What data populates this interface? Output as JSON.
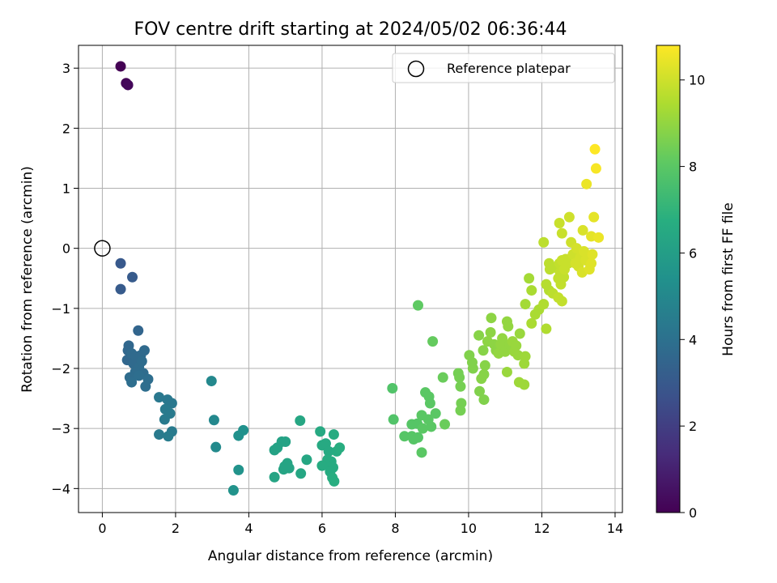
{
  "chart_data": {
    "type": "scatter",
    "title": "FOV centre drift starting at 2024/05/02 06:36:44",
    "xlabel": "Angular distance from reference (arcmin)",
    "ylabel": "Rotation from reference (arcmin)",
    "xlim": [
      -0.65,
      14.2
    ],
    "ylim": [
      -4.4,
      3.38
    ],
    "xticks": [
      0,
      2,
      4,
      6,
      8,
      10,
      12,
      14
    ],
    "yticks": [
      -4,
      -3,
      -2,
      -1,
      0,
      1,
      2,
      3
    ],
    "grid": true,
    "legend": {
      "placement": "top-right",
      "entries": [
        {
          "label": "Reference platepar",
          "marker": "open-circle"
        }
      ]
    },
    "reference_point": {
      "x": 0,
      "y": 0
    },
    "colorbar": {
      "label": "Hours from first FF file",
      "min": 0,
      "max": 10.8,
      "ticks": [
        0,
        2,
        4,
        6,
        8,
        10
      ],
      "colormap": "viridis"
    },
    "points": [
      {
        "x": 0.5,
        "y": 3.03,
        "c": 0.0
      },
      {
        "x": 0.65,
        "y": 2.75,
        "c": 0.1
      },
      {
        "x": 0.7,
        "y": 2.72,
        "c": 0.2
      },
      {
        "x": 0.5,
        "y": -0.25,
        "c": 3.0
      },
      {
        "x": 0.5,
        "y": -0.68,
        "c": 3.1
      },
      {
        "x": 0.82,
        "y": -0.48,
        "c": 3.1
      },
      {
        "x": 0.98,
        "y": -1.37,
        "c": 3.5
      },
      {
        "x": 0.72,
        "y": -1.62,
        "c": 3.6
      },
      {
        "x": 0.7,
        "y": -1.7,
        "c": 3.6
      },
      {
        "x": 0.68,
        "y": -1.86,
        "c": 3.6
      },
      {
        "x": 0.8,
        "y": -1.75,
        "c": 3.7
      },
      {
        "x": 0.92,
        "y": -1.8,
        "c": 3.7
      },
      {
        "x": 1.05,
        "y": -1.78,
        "c": 3.7
      },
      {
        "x": 1.15,
        "y": -1.7,
        "c": 3.7
      },
      {
        "x": 0.85,
        "y": -1.92,
        "c": 3.7
      },
      {
        "x": 1.0,
        "y": -1.98,
        "c": 3.8
      },
      {
        "x": 1.08,
        "y": -1.88,
        "c": 3.8
      },
      {
        "x": 0.9,
        "y": -2.06,
        "c": 3.8
      },
      {
        "x": 1.12,
        "y": -2.08,
        "c": 3.8
      },
      {
        "x": 0.75,
        "y": -2.15,
        "c": 3.8
      },
      {
        "x": 0.8,
        "y": -2.23,
        "c": 3.9
      },
      {
        "x": 1.0,
        "y": -2.12,
        "c": 3.9
      },
      {
        "x": 1.25,
        "y": -2.18,
        "c": 3.9
      },
      {
        "x": 1.18,
        "y": -2.3,
        "c": 3.9
      },
      {
        "x": 1.55,
        "y": -2.48,
        "c": 4.3
      },
      {
        "x": 1.78,
        "y": -2.52,
        "c": 4.3
      },
      {
        "x": 1.9,
        "y": -2.58,
        "c": 4.3
      },
      {
        "x": 1.72,
        "y": -2.68,
        "c": 4.4
      },
      {
        "x": 1.85,
        "y": -2.75,
        "c": 4.4
      },
      {
        "x": 1.7,
        "y": -2.85,
        "c": 4.4
      },
      {
        "x": 1.9,
        "y": -3.05,
        "c": 4.4
      },
      {
        "x": 1.55,
        "y": -3.1,
        "c": 4.4
      },
      {
        "x": 1.8,
        "y": -3.13,
        "c": 4.5
      },
      {
        "x": 2.98,
        "y": -2.21,
        "c": 5.0
      },
      {
        "x": 3.05,
        "y": -2.86,
        "c": 5.0
      },
      {
        "x": 3.1,
        "y": -3.31,
        "c": 5.1
      },
      {
        "x": 3.85,
        "y": -3.03,
        "c": 5.4
      },
      {
        "x": 3.72,
        "y": -3.12,
        "c": 5.4
      },
      {
        "x": 3.72,
        "y": -3.69,
        "c": 5.5
      },
      {
        "x": 3.58,
        "y": -4.03,
        "c": 5.5
      },
      {
        "x": 4.7,
        "y": -3.36,
        "c": 6.2
      },
      {
        "x": 4.78,
        "y": -3.32,
        "c": 6.2
      },
      {
        "x": 4.9,
        "y": -3.22,
        "c": 6.2
      },
      {
        "x": 5.0,
        "y": -3.22,
        "c": 6.2
      },
      {
        "x": 4.98,
        "y": -3.63,
        "c": 6.3
      },
      {
        "x": 5.05,
        "y": -3.58,
        "c": 6.3
      },
      {
        "x": 4.95,
        "y": -3.68,
        "c": 6.3
      },
      {
        "x": 5.1,
        "y": -3.66,
        "c": 6.3
      },
      {
        "x": 4.7,
        "y": -3.81,
        "c": 6.3
      },
      {
        "x": 5.4,
        "y": -2.87,
        "c": 6.4
      },
      {
        "x": 5.42,
        "y": -3.75,
        "c": 6.4
      },
      {
        "x": 5.58,
        "y": -3.52,
        "c": 6.4
      },
      {
        "x": 5.95,
        "y": -3.05,
        "c": 6.5
      },
      {
        "x": 6.0,
        "y": -3.28,
        "c": 6.5
      },
      {
        "x": 6.1,
        "y": -3.25,
        "c": 6.5
      },
      {
        "x": 6.18,
        "y": -3.38,
        "c": 6.5
      },
      {
        "x": 6.15,
        "y": -3.52,
        "c": 6.6
      },
      {
        "x": 6.25,
        "y": -3.55,
        "c": 6.6
      },
      {
        "x": 6.1,
        "y": -3.6,
        "c": 6.6
      },
      {
        "x": 6.0,
        "y": -3.62,
        "c": 6.6
      },
      {
        "x": 6.3,
        "y": -3.65,
        "c": 6.6
      },
      {
        "x": 6.22,
        "y": -3.72,
        "c": 6.6
      },
      {
        "x": 6.32,
        "y": -3.1,
        "c": 6.6
      },
      {
        "x": 6.4,
        "y": -3.38,
        "c": 6.6
      },
      {
        "x": 6.48,
        "y": -3.32,
        "c": 6.7
      },
      {
        "x": 6.28,
        "y": -3.82,
        "c": 6.7
      },
      {
        "x": 6.33,
        "y": -3.88,
        "c": 6.7
      },
      {
        "x": 7.92,
        "y": -2.33,
        "c": 7.8
      },
      {
        "x": 7.95,
        "y": -2.85,
        "c": 7.8
      },
      {
        "x": 8.25,
        "y": -3.13,
        "c": 7.9
      },
      {
        "x": 8.45,
        "y": -3.13,
        "c": 7.9
      },
      {
        "x": 8.5,
        "y": -3.18,
        "c": 7.9
      },
      {
        "x": 8.62,
        "y": -3.15,
        "c": 7.9
      },
      {
        "x": 8.45,
        "y": -2.93,
        "c": 7.9
      },
      {
        "x": 8.6,
        "y": -2.92,
        "c": 7.9
      },
      {
        "x": 8.72,
        "y": -2.78,
        "c": 8.0
      },
      {
        "x": 8.82,
        "y": -2.4,
        "c": 8.0
      },
      {
        "x": 8.92,
        "y": -2.47,
        "c": 8.0
      },
      {
        "x": 8.95,
        "y": -2.58,
        "c": 8.0
      },
      {
        "x": 8.75,
        "y": -3.0,
        "c": 8.0
      },
      {
        "x": 8.9,
        "y": -2.85,
        "c": 8.0
      },
      {
        "x": 8.98,
        "y": -2.97,
        "c": 8.0
      },
      {
        "x": 9.1,
        "y": -2.75,
        "c": 8.0
      },
      {
        "x": 8.72,
        "y": -3.4,
        "c": 8.0
      },
      {
        "x": 8.62,
        "y": -0.95,
        "c": 8.1
      },
      {
        "x": 9.02,
        "y": -1.55,
        "c": 8.2
      },
      {
        "x": 9.3,
        "y": -2.15,
        "c": 8.3
      },
      {
        "x": 9.35,
        "y": -2.93,
        "c": 8.3
      },
      {
        "x": 9.72,
        "y": -2.08,
        "c": 8.5
      },
      {
        "x": 9.75,
        "y": -2.15,
        "c": 8.5
      },
      {
        "x": 9.78,
        "y": -2.3,
        "c": 8.5
      },
      {
        "x": 9.8,
        "y": -2.58,
        "c": 8.5
      },
      {
        "x": 9.78,
        "y": -2.7,
        "c": 8.5
      },
      {
        "x": 10.02,
        "y": -1.78,
        "c": 8.7
      },
      {
        "x": 10.1,
        "y": -1.9,
        "c": 8.7
      },
      {
        "x": 10.12,
        "y": -2.0,
        "c": 8.7
      },
      {
        "x": 10.3,
        "y": -2.38,
        "c": 8.7
      },
      {
        "x": 10.42,
        "y": -2.52,
        "c": 8.7
      },
      {
        "x": 10.28,
        "y": -1.45,
        "c": 8.8
      },
      {
        "x": 10.4,
        "y": -1.7,
        "c": 8.8
      },
      {
        "x": 10.45,
        "y": -1.95,
        "c": 8.8
      },
      {
        "x": 10.42,
        "y": -2.1,
        "c": 8.8
      },
      {
        "x": 10.35,
        "y": -2.17,
        "c": 8.8
      },
      {
        "x": 10.52,
        "y": -1.55,
        "c": 8.9
      },
      {
        "x": 10.6,
        "y": -1.4,
        "c": 8.9
      },
      {
        "x": 10.62,
        "y": -1.16,
        "c": 8.9
      },
      {
        "x": 10.7,
        "y": -1.6,
        "c": 8.9
      },
      {
        "x": 10.75,
        "y": -1.7,
        "c": 8.9
      },
      {
        "x": 10.82,
        "y": -1.75,
        "c": 9.0
      },
      {
        "x": 10.88,
        "y": -1.6,
        "c": 9.0
      },
      {
        "x": 10.92,
        "y": -1.5,
        "c": 9.0
      },
      {
        "x": 11.0,
        "y": -1.72,
        "c": 9.0
      },
      {
        "x": 11.05,
        "y": -1.22,
        "c": 9.0
      },
      {
        "x": 11.08,
        "y": -1.3,
        "c": 9.0
      },
      {
        "x": 11.12,
        "y": -1.6,
        "c": 9.0
      },
      {
        "x": 11.05,
        "y": -2.06,
        "c": 9.1
      },
      {
        "x": 11.2,
        "y": -1.55,
        "c": 9.1
      },
      {
        "x": 11.25,
        "y": -1.72,
        "c": 9.1
      },
      {
        "x": 11.35,
        "y": -1.78,
        "c": 9.1
      },
      {
        "x": 11.3,
        "y": -1.62,
        "c": 9.1
      },
      {
        "x": 11.4,
        "y": -1.42,
        "c": 9.1
      },
      {
        "x": 11.38,
        "y": -2.23,
        "c": 9.2
      },
      {
        "x": 11.52,
        "y": -1.92,
        "c": 9.2
      },
      {
        "x": 11.55,
        "y": -1.8,
        "c": 9.2
      },
      {
        "x": 11.52,
        "y": -2.27,
        "c": 9.2
      },
      {
        "x": 11.55,
        "y": -0.93,
        "c": 9.3
      },
      {
        "x": 11.65,
        "y": -0.5,
        "c": 9.3
      },
      {
        "x": 11.72,
        "y": -0.7,
        "c": 9.4
      },
      {
        "x": 11.72,
        "y": -1.25,
        "c": 9.4
      },
      {
        "x": 11.82,
        "y": -1.1,
        "c": 9.4
      },
      {
        "x": 11.92,
        "y": -1.02,
        "c": 9.4
      },
      {
        "x": 12.05,
        "y": -0.93,
        "c": 9.5
      },
      {
        "x": 12.12,
        "y": -1.34,
        "c": 9.5
      },
      {
        "x": 12.12,
        "y": -0.6,
        "c": 9.6
      },
      {
        "x": 12.2,
        "y": -0.7,
        "c": 9.6
      },
      {
        "x": 12.05,
        "y": 0.1,
        "c": 9.7
      },
      {
        "x": 12.2,
        "y": -0.25,
        "c": 9.7
      },
      {
        "x": 12.22,
        "y": -0.35,
        "c": 9.7
      },
      {
        "x": 12.32,
        "y": -0.32,
        "c": 9.7
      },
      {
        "x": 12.3,
        "y": -0.75,
        "c": 9.7
      },
      {
        "x": 12.45,
        "y": -0.82,
        "c": 9.8
      },
      {
        "x": 12.5,
        "y": -0.4,
        "c": 9.8
      },
      {
        "x": 12.45,
        "y": -0.5,
        "c": 9.8
      },
      {
        "x": 12.52,
        "y": -0.6,
        "c": 9.8
      },
      {
        "x": 12.6,
        "y": -0.48,
        "c": 9.8
      },
      {
        "x": 12.55,
        "y": -0.88,
        "c": 9.8
      },
      {
        "x": 12.48,
        "y": -0.25,
        "c": 9.8
      },
      {
        "x": 12.55,
        "y": -0.2,
        "c": 9.9
      },
      {
        "x": 12.62,
        "y": -0.35,
        "c": 9.9
      },
      {
        "x": 12.65,
        "y": -0.18,
        "c": 9.9
      },
      {
        "x": 12.72,
        "y": -0.25,
        "c": 9.9
      },
      {
        "x": 12.48,
        "y": 0.42,
        "c": 9.9
      },
      {
        "x": 12.55,
        "y": 0.25,
        "c": 9.9
      },
      {
        "x": 12.75,
        "y": 0.52,
        "c": 10.0
      },
      {
        "x": 12.8,
        "y": 0.1,
        "c": 10.0
      },
      {
        "x": 12.85,
        "y": -0.1,
        "c": 10.0
      },
      {
        "x": 12.92,
        "y": -0.25,
        "c": 10.1
      },
      {
        "x": 12.95,
        "y": 0.0,
        "c": 10.1
      },
      {
        "x": 13.0,
        "y": -0.3,
        "c": 10.1
      },
      {
        "x": 13.05,
        "y": -0.15,
        "c": 10.1
      },
      {
        "x": 13.1,
        "y": -0.4,
        "c": 10.2
      },
      {
        "x": 13.12,
        "y": 0.3,
        "c": 10.2
      },
      {
        "x": 13.15,
        "y": -0.05,
        "c": 10.2
      },
      {
        "x": 13.2,
        "y": -0.2,
        "c": 10.2
      },
      {
        "x": 13.3,
        "y": -0.35,
        "c": 10.3
      },
      {
        "x": 13.35,
        "y": -0.25,
        "c": 10.3
      },
      {
        "x": 13.38,
        "y": -0.1,
        "c": 10.3
      },
      {
        "x": 13.35,
        "y": 0.2,
        "c": 10.4
      },
      {
        "x": 13.42,
        "y": 0.52,
        "c": 10.4
      },
      {
        "x": 13.55,
        "y": 0.18,
        "c": 10.5
      },
      {
        "x": 13.22,
        "y": 1.07,
        "c": 10.5
      },
      {
        "x": 13.48,
        "y": 1.33,
        "c": 10.7
      },
      {
        "x": 13.45,
        "y": 1.65,
        "c": 10.8
      }
    ]
  }
}
